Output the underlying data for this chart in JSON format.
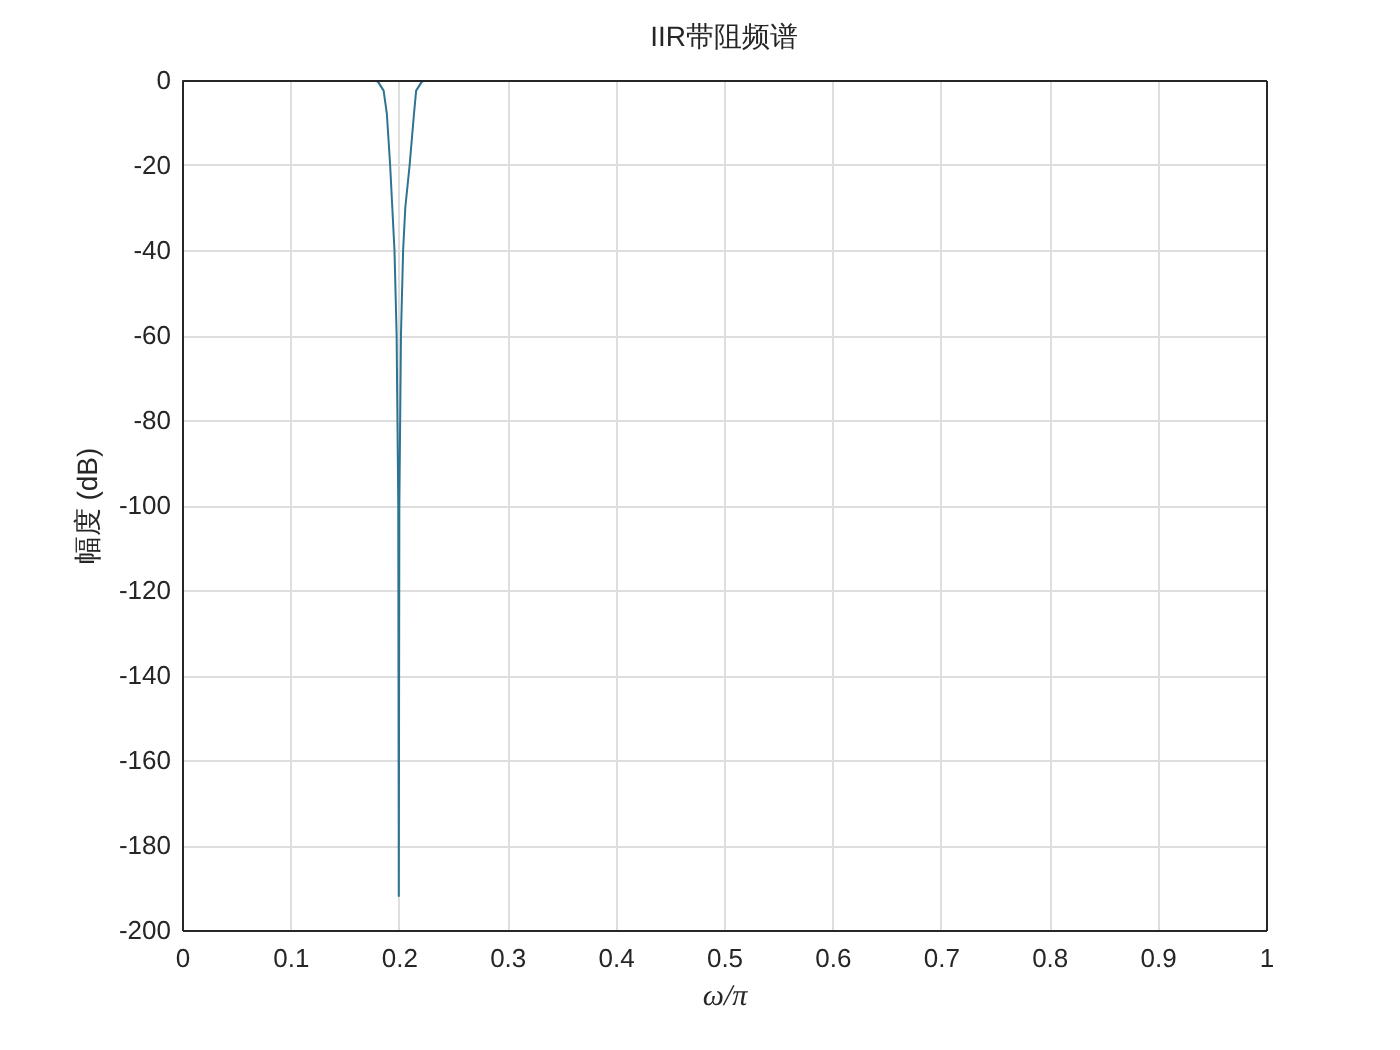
{
  "chart_data": {
    "type": "line",
    "title": "IIR带阻频谱",
    "xlabel": "ω/π",
    "ylabel": "幅度 (dB)",
    "x": [
      0,
      0.178,
      0.181,
      0.186,
      0.189,
      0.192,
      0.194,
      0.196,
      0.198,
      0.1995,
      0.2,
      0.2005,
      0.202,
      0.204,
      0.206,
      0.21,
      0.214,
      0.216,
      0.221,
      0.224,
      1
    ],
    "series": [
      {
        "color": "#2e7391",
        "values": [
          0,
          0,
          -0.5,
          -2.5,
          -8,
          -20,
          -30,
          -40,
          -60,
          -100,
          -192,
          -100,
          -60,
          -40,
          -30,
          -20,
          -8,
          -2.5,
          -0.5,
          0,
          0
        ]
      }
    ],
    "xlim": [
      0,
      1
    ],
    "ylim": [
      -200,
      0
    ],
    "xticks": [
      0,
      0.1,
      0.2,
      0.3,
      0.4,
      0.5,
      0.6,
      0.7,
      0.8,
      0.9,
      1
    ],
    "yticks": [
      -200,
      -180,
      -160,
      -140,
      -120,
      -100,
      -80,
      -60,
      -40,
      -20,
      0
    ],
    "grid": true
  }
}
